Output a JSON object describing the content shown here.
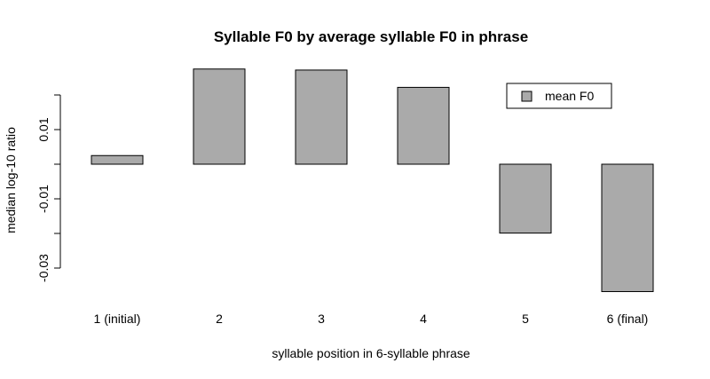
{
  "chart_data": {
    "type": "bar",
    "title": "Syllable F0 by average syllable F0 in phrase",
    "xlabel": "syllable position in 6-syllable phrase",
    "ylabel": "median log-10 ratio",
    "categories": [
      "1 (initial)",
      "2",
      "3",
      "4",
      "5",
      "6 (final)"
    ],
    "series": [
      {
        "name": "mean F0",
        "values": [
          0.0025,
          0.0275,
          0.0272,
          0.0222,
          -0.0199,
          -0.0368
        ]
      }
    ],
    "yticks": [
      -0.03,
      -0.01,
      0.01
    ],
    "ytick_labels": [
      "-0.03",
      "-0.01",
      "0.01"
    ],
    "ylim": [
      -0.04,
      0.03
    ],
    "bar_color": "#aaaaaa",
    "grid": false,
    "legend_position": "top-right"
  }
}
